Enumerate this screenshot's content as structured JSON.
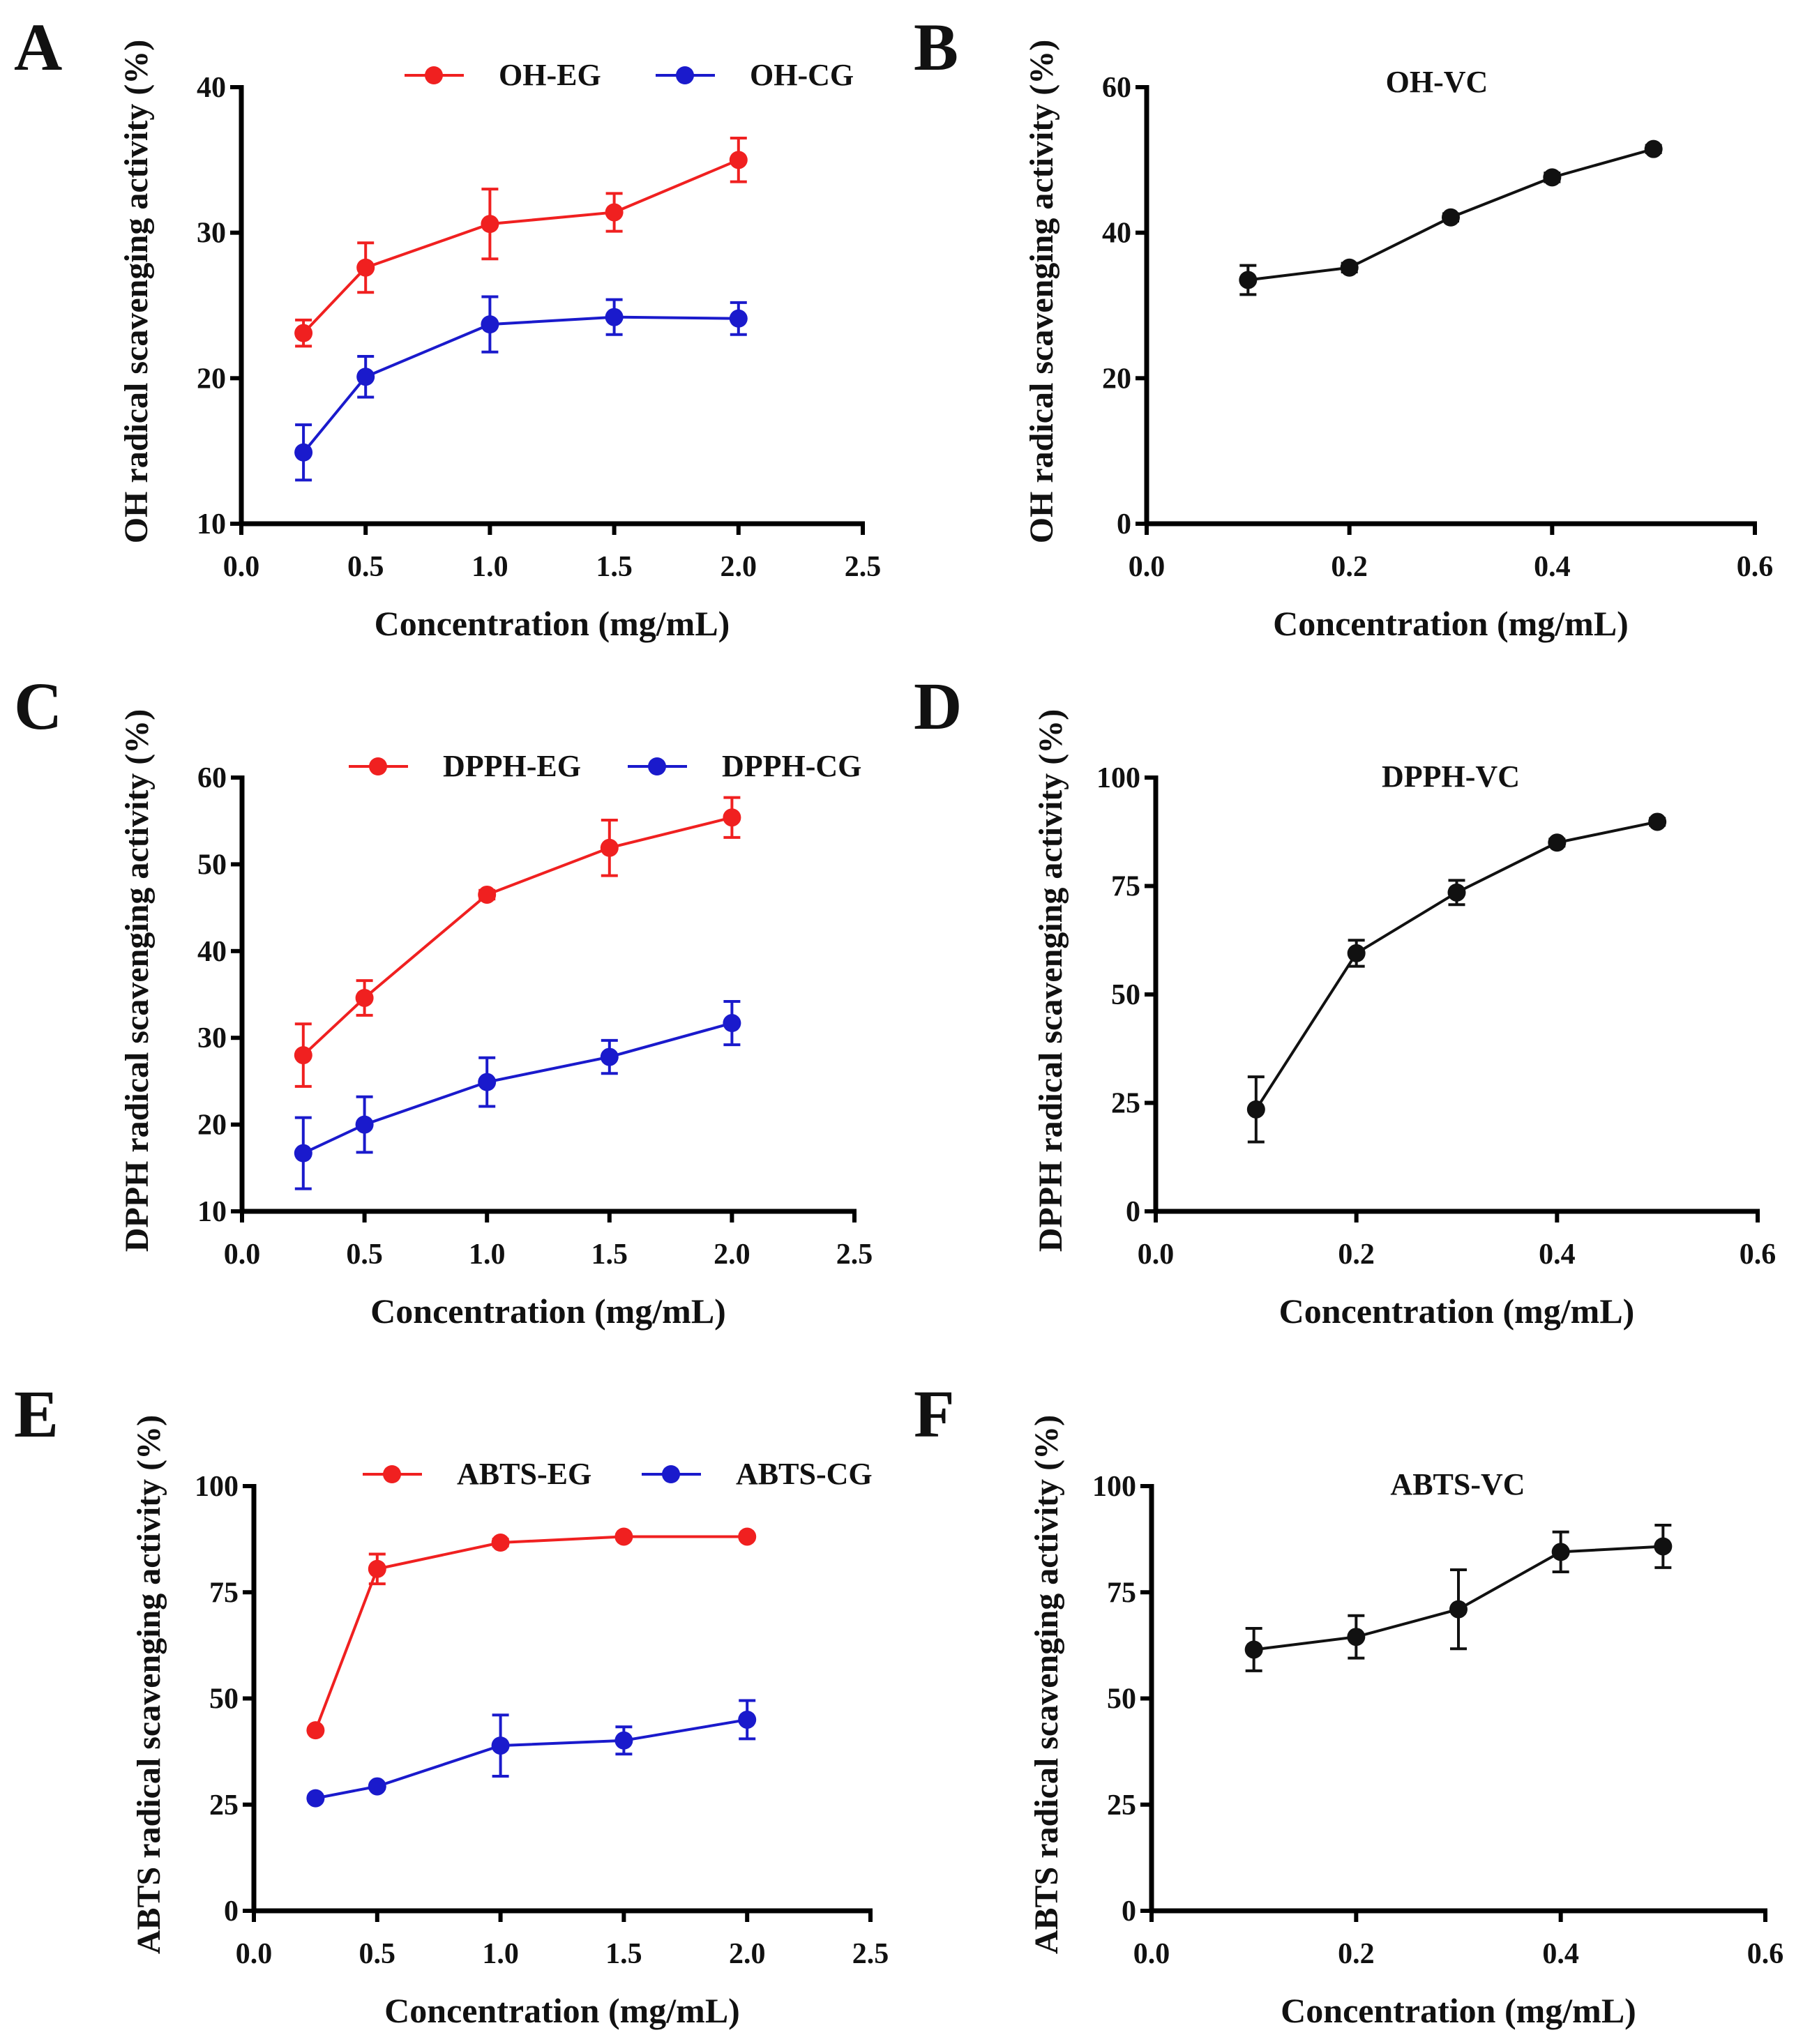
{
  "colors": {
    "EG": "#f02020",
    "CG": "#1a1acc",
    "VC": "#111111",
    "axis": "#000000"
  },
  "chart_data": [
    {
      "panel": "A",
      "type": "line",
      "xlabel": "Concentration (mg/mL)",
      "ylabel": "OH radical scavenging activity (%)",
      "xlim": [
        0,
        2.5
      ],
      "ylim": [
        10,
        40
      ],
      "xticks": [
        "0.0",
        "0.5",
        "1.0",
        "1.5",
        "2.0",
        "2.5"
      ],
      "yticks": [
        "10",
        "20",
        "30",
        "40"
      ],
      "legend_position": "top",
      "series": [
        {
          "name": "OH-EG",
          "color_key": "EG",
          "x": [
            0.25,
            0.5,
            1.0,
            1.5,
            2.0
          ],
          "y": [
            23.1,
            27.6,
            30.6,
            31.4,
            35.0
          ],
          "err": [
            0.9,
            1.7,
            2.4,
            1.3,
            1.5
          ]
        },
        {
          "name": "OH-CG",
          "color_key": "CG",
          "x": [
            0.25,
            0.5,
            1.0,
            1.5,
            2.0
          ],
          "y": [
            14.9,
            20.1,
            23.7,
            24.2,
            24.1
          ],
          "err": [
            1.9,
            1.4,
            1.9,
            1.2,
            1.1
          ]
        }
      ]
    },
    {
      "panel": "B",
      "type": "line",
      "title": "OH-VC",
      "xlabel": "Concentration (mg/mL)",
      "ylabel": "OH radical scavenging activity (%)",
      "xlim": [
        0,
        0.6
      ],
      "ylim": [
        0,
        60
      ],
      "xticks": [
        "0.0",
        "0.2",
        "0.4",
        "0.6"
      ],
      "yticks": [
        "0",
        "20",
        "40",
        "60"
      ],
      "series": [
        {
          "name": "OH-VC",
          "color_key": "VC",
          "x": [
            0.1,
            0.2,
            0.3,
            0.4,
            0.5
          ],
          "y": [
            33.5,
            35.2,
            42.1,
            47.6,
            51.5
          ],
          "err": [
            2.0,
            0.6,
            0.5,
            0.6,
            0.5
          ]
        }
      ]
    },
    {
      "panel": "C",
      "type": "line",
      "xlabel": "Concentration (mg/mL)",
      "ylabel": "DPPH radical scavenging activity (%)",
      "xlim": [
        0,
        2.5
      ],
      "ylim": [
        10,
        60
      ],
      "xticks": [
        "0.0",
        "0.5",
        "1.0",
        "1.5",
        "2.0",
        "2.5"
      ],
      "yticks": [
        "10",
        "20",
        "30",
        "40",
        "50",
        "60"
      ],
      "legend_position": "top",
      "series": [
        {
          "name": "DPPH-EG",
          "color_key": "EG",
          "x": [
            0.25,
            0.5,
            1.0,
            1.5,
            2.0
          ],
          "y": [
            28.0,
            34.6,
            46.5,
            51.9,
            55.4
          ],
          "err": [
            3.6,
            2.0,
            0.5,
            3.2,
            2.3
          ]
        },
        {
          "name": "DPPH-CG",
          "color_key": "CG",
          "x": [
            0.25,
            0.5,
            1.0,
            1.5,
            2.0
          ],
          "y": [
            16.7,
            20.0,
            24.9,
            27.8,
            31.7
          ],
          "err": [
            4.1,
            3.2,
            2.8,
            1.9,
            2.5
          ]
        }
      ]
    },
    {
      "panel": "D",
      "type": "line",
      "title": "DPPH-VC",
      "xlabel": "Concentration (mg/mL)",
      "ylabel": "DPPH radical scavenging activity (%)",
      "xlim": [
        0,
        0.6
      ],
      "ylim": [
        0,
        100
      ],
      "xticks": [
        "0.0",
        "0.2",
        "0.4",
        "0.6"
      ],
      "yticks": [
        "0",
        "25",
        "50",
        "75",
        "100"
      ],
      "series": [
        {
          "name": "DPPH-VC",
          "color_key": "VC",
          "x": [
            0.1,
            0.2,
            0.3,
            0.4,
            0.5
          ],
          "y": [
            23.5,
            59.5,
            73.5,
            85.0,
            89.8
          ],
          "err": [
            7.5,
            3.0,
            2.8,
            0.8,
            0.8
          ]
        }
      ]
    },
    {
      "panel": "E",
      "type": "line",
      "xlabel": "Concentration (mg/mL)",
      "ylabel": "ABTS radical scavenging activity (%)",
      "xlim": [
        0,
        2.5
      ],
      "ylim": [
        0,
        100
      ],
      "xticks": [
        "0.0",
        "0.5",
        "1.0",
        "1.5",
        "2.0",
        "2.5"
      ],
      "yticks": [
        "0",
        "25",
        "50",
        "75",
        "100"
      ],
      "legend_position": "top",
      "series": [
        {
          "name": "ABTS-EG",
          "color_key": "EG",
          "x": [
            0.25,
            0.5,
            1.0,
            1.5,
            2.0
          ],
          "y": [
            42.5,
            80.5,
            86.7,
            88.1,
            88.1
          ],
          "err": [
            0.5,
            3.5,
            0.8,
            0.5,
            0.5
          ]
        },
        {
          "name": "ABTS-CG",
          "color_key": "CG",
          "x": [
            0.25,
            0.5,
            1.0,
            1.5,
            2.0
          ],
          "y": [
            26.5,
            29.3,
            38.9,
            40.1,
            45.0
          ],
          "err": [
            0.5,
            0.5,
            7.2,
            3.2,
            4.5
          ]
        }
      ]
    },
    {
      "panel": "F",
      "type": "line",
      "title": "ABTS-VC",
      "xlabel": "Concentration (mg/mL)",
      "ylabel": "ABTS radical scavenging activity (%)",
      "xlim": [
        0,
        0.6
      ],
      "ylim": [
        0,
        100
      ],
      "xticks": [
        "0.0",
        "0.2",
        "0.4",
        "0.6"
      ],
      "yticks": [
        "0",
        "25",
        "50",
        "75",
        "100"
      ],
      "series": [
        {
          "name": "ABTS-VC",
          "color_key": "VC",
          "x": [
            0.1,
            0.2,
            0.3,
            0.4,
            0.5
          ],
          "y": [
            61.5,
            64.5,
            71.0,
            84.5,
            85.8
          ],
          "err": [
            5.0,
            5.0,
            9.3,
            4.7,
            5.0
          ]
        }
      ]
    }
  ]
}
